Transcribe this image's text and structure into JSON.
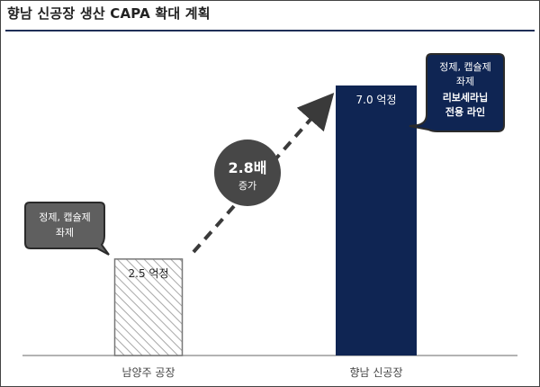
{
  "page": {
    "title": "향남 신공장 생산 CAPA 확대 계획"
  },
  "chart_data": {
    "type": "bar",
    "title": "향남 신공장 생산 CAPA 확대 계획",
    "categories": [
      "남양주 공장",
      "향남 신공장"
    ],
    "values": [
      2.5,
      7.0
    ],
    "unit": "억정",
    "data_labels": [
      "2.5 억정",
      "7.0 억정"
    ],
    "ylim": [
      0,
      7.0
    ],
    "grid": false,
    "bar_styles": [
      "hatched",
      "solid"
    ],
    "colors": {
      "bar_solid": "#0f2553",
      "bar_hatch": "#9a9a9a",
      "callout_left": "#6b6b6b",
      "callout_right": "#0f2553",
      "circle": "#474747",
      "arrow": "#3a3a3a",
      "axis": "#9a9a9a"
    },
    "growth": {
      "value_label": "2.8배",
      "sub_label": "증가"
    },
    "callouts": {
      "left": [
        "정제, 캡슐제",
        "좌제"
      ],
      "right_normal": [
        "정제, 캡슐제",
        "좌제"
      ],
      "right_bold": [
        "리보세라닙",
        "전용 라인"
      ]
    }
  }
}
